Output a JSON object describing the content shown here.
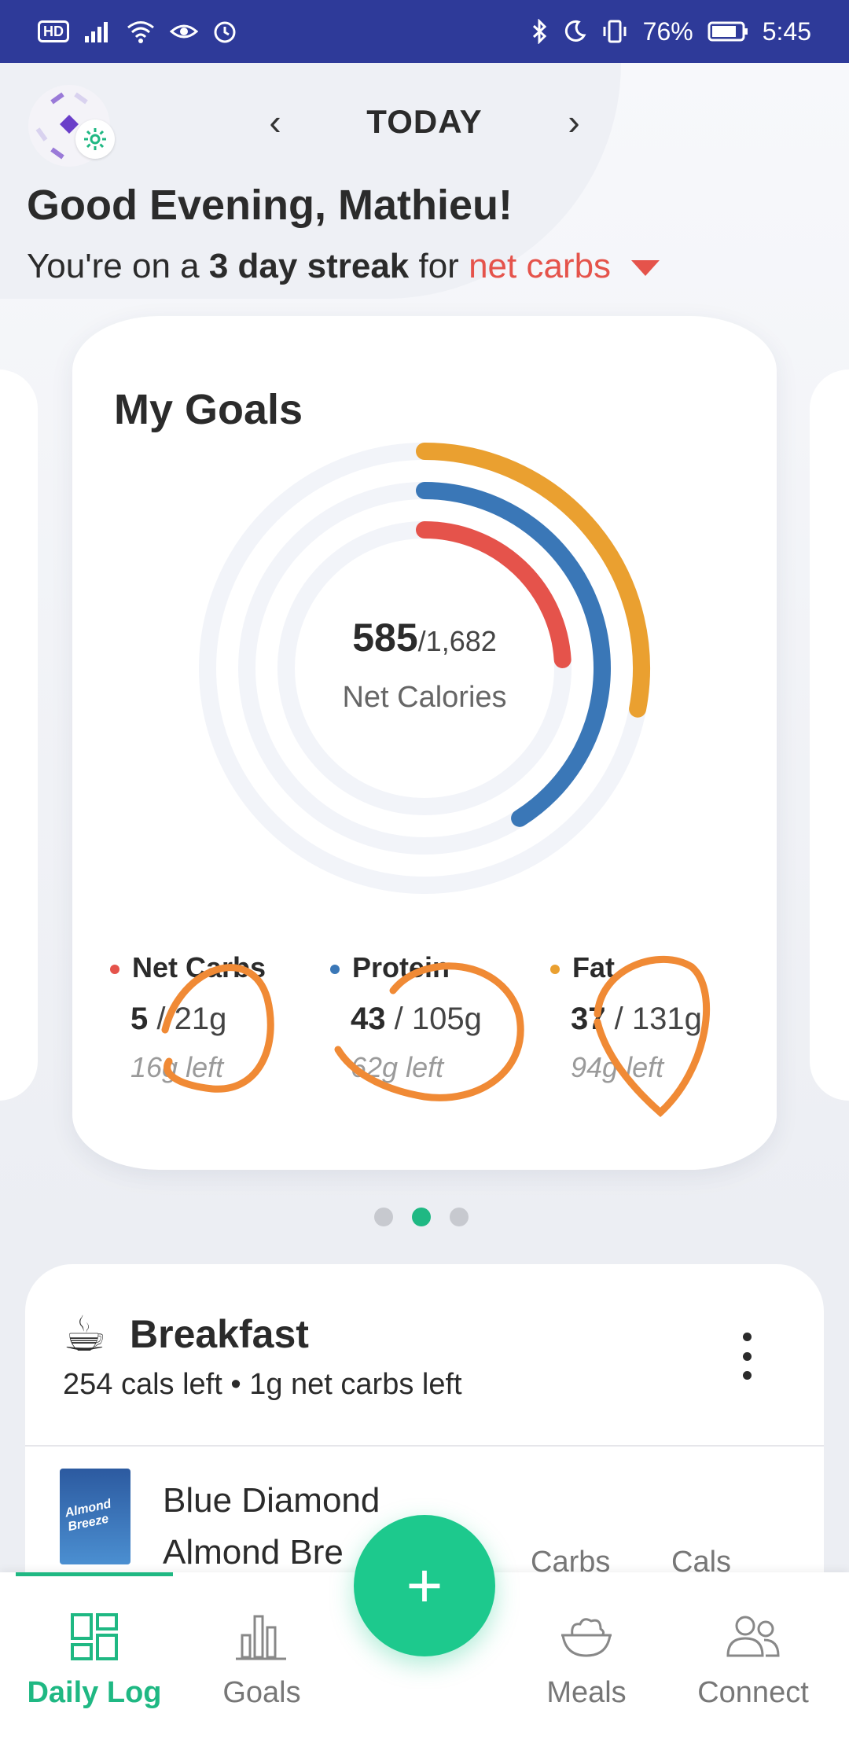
{
  "status_bar": {
    "hd": "HD",
    "battery": "76%",
    "time": "5:45"
  },
  "header": {
    "date_title": "TODAY",
    "prev_label": "‹",
    "next_label": "›",
    "greeting": "Good Evening, Mathieu!",
    "streak_prefix": "You're on a ",
    "streak_count": "3 day streak",
    "streak_mid": " for ",
    "streak_metric": "net carbs"
  },
  "goals": {
    "title": "My Goals",
    "calories_consumed": "585",
    "calories_goal": "/1,682",
    "calories_label": "Net Calories",
    "macros": [
      {
        "name": "Net Carbs",
        "amount": "5",
        "goal": " / 21g",
        "left": "16g left",
        "color": "#e5534b",
        "progress": 0.24
      },
      {
        "name": "Protein",
        "amount": "43",
        "goal": " / 105g",
        "left": "62g left",
        "color": "#3a77b7",
        "progress": 0.41
      },
      {
        "name": "Fat",
        "amount": "37",
        "goal": " / 131g",
        "left": "94g left",
        "color": "#eaa030",
        "progress": 0.28
      }
    ],
    "ring_colors": {
      "outer": "#eaa030",
      "middle": "#3a77b7",
      "inner": "#e5534b",
      "track": "#f2f4f9"
    }
  },
  "pager": {
    "count": 3,
    "active": 1
  },
  "breakfast": {
    "icon": "☕",
    "title": "Breakfast",
    "subtitle": "254 cals left • 1g net carbs left",
    "food_name": "Blue Diamond Almond Bre",
    "thumb_label": "Almond Breeze",
    "columns": [
      "Carbs",
      "Cals"
    ]
  },
  "nav": {
    "fab_label": "+",
    "items": [
      {
        "label": "Daily Log",
        "icon": "daily-log-icon"
      },
      {
        "label": "Goals",
        "icon": "goals-chart-icon"
      },
      {
        "label": "Meals",
        "icon": "meals-bowl-icon"
      },
      {
        "label": "Connect",
        "icon": "connect-people-icon"
      }
    ]
  }
}
